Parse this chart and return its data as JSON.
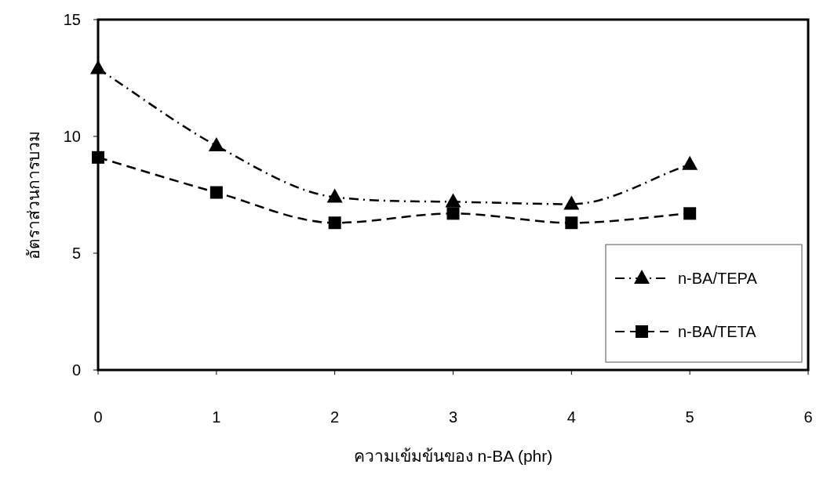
{
  "chart_data": {
    "type": "line",
    "xlabel": "ความเข้มข้นของ n-BA (phr)",
    "ylabel": "อัตราส่วนการบวม",
    "x": [
      0,
      1,
      2,
      3,
      4,
      5
    ],
    "xlim": [
      0,
      6
    ],
    "xticks": [
      0,
      1,
      2,
      3,
      4,
      5,
      6
    ],
    "ylim": [
      0,
      15
    ],
    "yticks": [
      0,
      5,
      10,
      15
    ],
    "grid": false,
    "legend": "bottom right",
    "series": [
      {
        "name": "n-BA/TEPA",
        "color": "#000000",
        "marker": "triangle",
        "line_style": "dashdot",
        "values": [
          12.9,
          9.6,
          7.4,
          7.2,
          7.1,
          8.8
        ]
      },
      {
        "name": "n-BA/TETA",
        "color": "#000000",
        "marker": "square",
        "line_style": "dashed",
        "values": [
          9.1,
          7.6,
          6.3,
          6.7,
          6.3,
          6.7
        ]
      }
    ]
  }
}
